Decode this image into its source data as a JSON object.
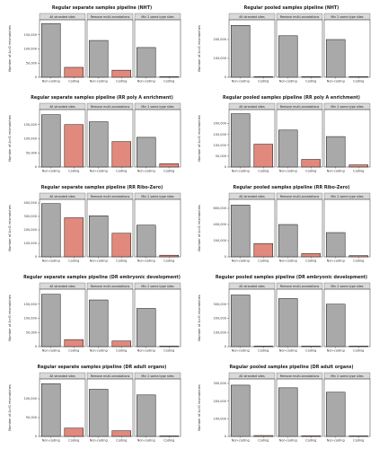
{
  "chart_data": [
    {
      "type": "bar",
      "title": "Regular separate samples pipeline (NHT)",
      "ylabel": "Number of A>G mismatches",
      "facets": [
        "All stranded sites",
        "Remove multi-annotations",
        "Min 2 same-type sites"
      ],
      "categories": [
        "Non-coding",
        "Coding"
      ],
      "ylim": [
        0,
        200000
      ],
      "yticks": [
        0,
        50000,
        100000,
        150000
      ],
      "ytick_labels": [
        "0",
        "50,000",
        "100,000",
        "150,000"
      ],
      "values": [
        [
          190000,
          35000
        ],
        [
          130000,
          25000
        ],
        [
          105000,
          1500
        ]
      ]
    },
    {
      "type": "bar",
      "title": "Regular pooled samples pipeline (NHT)",
      "ylabel": "Number of A>G mismatches",
      "facets": [
        "All stranded sites",
        "Remove multi-annotations",
        "Min 2 same-type sites"
      ],
      "categories": [
        "Non-coding",
        "Coding"
      ],
      "ylim": [
        0,
        300000
      ],
      "yticks": [
        0,
        100000,
        200000
      ],
      "ytick_labels": [
        "0",
        "100,000",
        "200,000"
      ],
      "values": [
        [
          275000,
          2500
        ],
        [
          220000,
          2000
        ],
        [
          200000,
          1000
        ]
      ]
    },
    {
      "type": "bar",
      "title": "Regular separate samples pipeline (RR poly A enrichment)",
      "ylabel": "Number of A>G mismatches",
      "facets": [
        "All stranded sites",
        "Remove multi-annotations",
        "Min 2 same-type sites"
      ],
      "categories": [
        "Non-coding",
        "Coding"
      ],
      "ylim": [
        0,
        200000
      ],
      "yticks": [
        0,
        50000,
        100000,
        150000
      ],
      "ytick_labels": [
        "0",
        "50,000",
        "100,000",
        "150,000"
      ],
      "values": [
        [
          185000,
          150000
        ],
        [
          160000,
          90000
        ],
        [
          105000,
          12000
        ]
      ]
    },
    {
      "type": "bar",
      "title": "Regular pooled samples pipeline (RR poly A enrichment)",
      "ylabel": "Number of A>G mismatches",
      "facets": [
        "All stranded sites",
        "Remove multi-annotations",
        "Min 2 same-type sites"
      ],
      "categories": [
        "Non-coding",
        "Coding"
      ],
      "ylim": [
        0,
        260000
      ],
      "yticks": [
        0,
        50000,
        100000,
        150000,
        200000
      ],
      "ytick_labels": [
        "0",
        "50,000",
        "100,000",
        "150,000",
        "200,000"
      ],
      "values": [
        [
          245000,
          105000
        ],
        [
          170000,
          35000
        ],
        [
          140000,
          10000
        ]
      ]
    },
    {
      "type": "bar",
      "title": "Regular separate samples pipeline (RR Ribo-Zero)",
      "ylabel": "Number of A>G mismatches",
      "facets": [
        "All stranded sites",
        "Remove multi-annotations",
        "Min 2 same-type sites"
      ],
      "categories": [
        "Non-coding",
        "Coding"
      ],
      "ylim": [
        0,
        420000
      ],
      "yticks": [
        0,
        100000,
        200000,
        300000,
        400000
      ],
      "ytick_labels": [
        "0",
        "100,000",
        "200,000",
        "300,000",
        "400,000"
      ],
      "values": [
        [
          395000,
          290000
        ],
        [
          305000,
          175000
        ],
        [
          235000,
          12000
        ]
      ]
    },
    {
      "type": "bar",
      "title": "Regular pooled samples pipeline (RR Ribo-Zero)",
      "ylabel": "Number of A>G mismatches",
      "facets": [
        "All stranded sites",
        "Remove multi-annotations",
        "Min 2 same-type sites"
      ],
      "categories": [
        "Non-coding",
        "Coding"
      ],
      "ylim": [
        0,
        700000
      ],
      "yticks": [
        0,
        200000,
        400000,
        600000
      ],
      "ytick_labels": [
        "0",
        "200,000",
        "400,000",
        "600,000"
      ],
      "values": [
        [
          640000,
          165000
        ],
        [
          400000,
          40000
        ],
        [
          300000,
          15000
        ]
      ]
    },
    {
      "type": "bar",
      "title": "Regular separate samples pipeline (DR embryonic development)",
      "ylabel": "Number of A>G mismatches",
      "facets": [
        "All stranded sites",
        "Remove multi-annotations",
        "Min 2 same-type sites"
      ],
      "categories": [
        "Non-coding",
        "Coding"
      ],
      "ylim": [
        0,
        200000
      ],
      "yticks": [
        0,
        50000,
        100000,
        150000
      ],
      "ytick_labels": [
        "0",
        "50,000",
        "100,000",
        "150,000"
      ],
      "values": [
        [
          185000,
          25000
        ],
        [
          165000,
          20000
        ],
        [
          135000,
          1000
        ]
      ]
    },
    {
      "type": "bar",
      "title": "Regular pooled samples pipeline (DR embryonic development)",
      "ylabel": "Number of A>G mismatches",
      "facets": [
        "All stranded sites",
        "Remove multi-annotations",
        "Min 2 same-type sites"
      ],
      "categories": [
        "Non-coding",
        "Coding"
      ],
      "ylim": [
        0,
        400000
      ],
      "yticks": [
        0,
        100000,
        200000,
        300000
      ],
      "ytick_labels": [
        "0",
        "100,000",
        "200,000",
        "300,000"
      ],
      "values": [
        [
          365000,
          3000
        ],
        [
          340000,
          2500
        ],
        [
          300000,
          1000
        ]
      ]
    },
    {
      "type": "bar",
      "title": "Regular separate samples pipeline (DR adult organs)",
      "ylabel": "Number of A>G mismatches",
      "facets": [
        "All stranded sites",
        "Remove multi-annotations",
        "Min 2 same-type sites"
      ],
      "categories": [
        "Non-coding",
        "Coding"
      ],
      "ylim": [
        0,
        150000
      ],
      "yticks": [
        0,
        50000,
        100000
      ],
      "ytick_labels": [
        "0",
        "50,000",
        "100,000"
      ],
      "values": [
        [
          140000,
          22000
        ],
        [
          125000,
          15000
        ],
        [
          110000,
          1000
        ]
      ]
    },
    {
      "type": "bar",
      "title": "Regular pooled samples pipeline (DR adult organs)",
      "ylabel": "Number of A>G mismatches",
      "facets": [
        "All stranded sites",
        "Remove multi-annotations",
        "Min 2 same-type sites"
      ],
      "categories": [
        "Non-coding",
        "Coding"
      ],
      "ylim": [
        0,
        320000
      ],
      "yticks": [
        0,
        100000,
        200000,
        300000
      ],
      "ytick_labels": [
        "0",
        "100,000",
        "200,000",
        "300,000"
      ],
      "values": [
        [
          290000,
          5000
        ],
        [
          275000,
          4000
        ],
        [
          250000,
          1000
        ]
      ]
    }
  ],
  "colors": {
    "noncoding": "#a9a9a9",
    "coding": "#e0897c",
    "strip": "#d9d9d9"
  }
}
